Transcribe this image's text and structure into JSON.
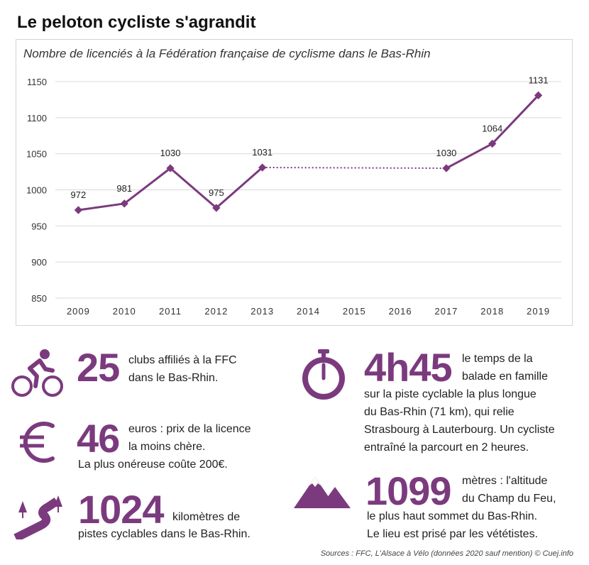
{
  "title": "Le peloton cycliste s'agrandit",
  "chart_data": {
    "type": "line",
    "subtitle": "Nombre de licenciés à la Fédération française de cyclisme dans le Bas-Rhin",
    "categories": [
      "2009",
      "2010",
      "2011",
      "2012",
      "2013",
      "2014",
      "2015",
      "2016",
      "2017",
      "2018",
      "2019"
    ],
    "series": [
      {
        "values": [
          972,
          981,
          1030,
          975,
          1031,
          null,
          null,
          null,
          1030,
          1064,
          1131
        ],
        "labels": [
          "972",
          "981",
          "1030",
          "975",
          "1031",
          "",
          "",
          "",
          "1030",
          "1064",
          "1131"
        ]
      }
    ],
    "gap": {
      "from": "2013",
      "to": "2017",
      "style": "dotted"
    },
    "ylim": [
      850,
      1150
    ],
    "yticks": [
      "850",
      "900",
      "950",
      "1000",
      "1050",
      "1100",
      "1150"
    ],
    "grid": true,
    "color": "#7b3a7e"
  },
  "stats": {
    "clubs": {
      "number": "25",
      "line1": "clubs affiliés à la FFC",
      "line2": "dans le Bas-Rhin.",
      "icon": "cyclist-icon"
    },
    "licence": {
      "number": "46",
      "line1": "euros : prix de la licence",
      "line2": "la moins chère.",
      "line3": "La plus onéreuse coûte 200€.",
      "icon": "euro-icon"
    },
    "pistes": {
      "number": "1024",
      "line1": "kilomètres de",
      "line2": "pistes cyclables dans le Bas-Rhin.",
      "icon": "winding-road-icon"
    },
    "duree": {
      "number": "4h45",
      "line1": "le temps de la",
      "line2": "balade en famille",
      "line3": "sur la piste cyclable la plus longue",
      "line4": "du Bas-Rhin (71 km), qui relie",
      "line5": "Strasbourg à Lauterbourg. Un cycliste",
      "line6": "entraîné la parcourt en 2 heures.",
      "icon": "stopwatch-icon"
    },
    "altitude": {
      "number": "1099",
      "line1": "mètres : l'altitude",
      "line2": "du Champ du Feu,",
      "line3": "le plus haut sommet du Bas-Rhin.",
      "line4": "Le lieu est prisé par les vététistes.",
      "icon": "mountain-icon"
    }
  },
  "source": "Sources : FFC, L'Alsace à Vélo (données 2020 sauf mention) © Cuej.info",
  "accent_color": "#7b3a7e"
}
